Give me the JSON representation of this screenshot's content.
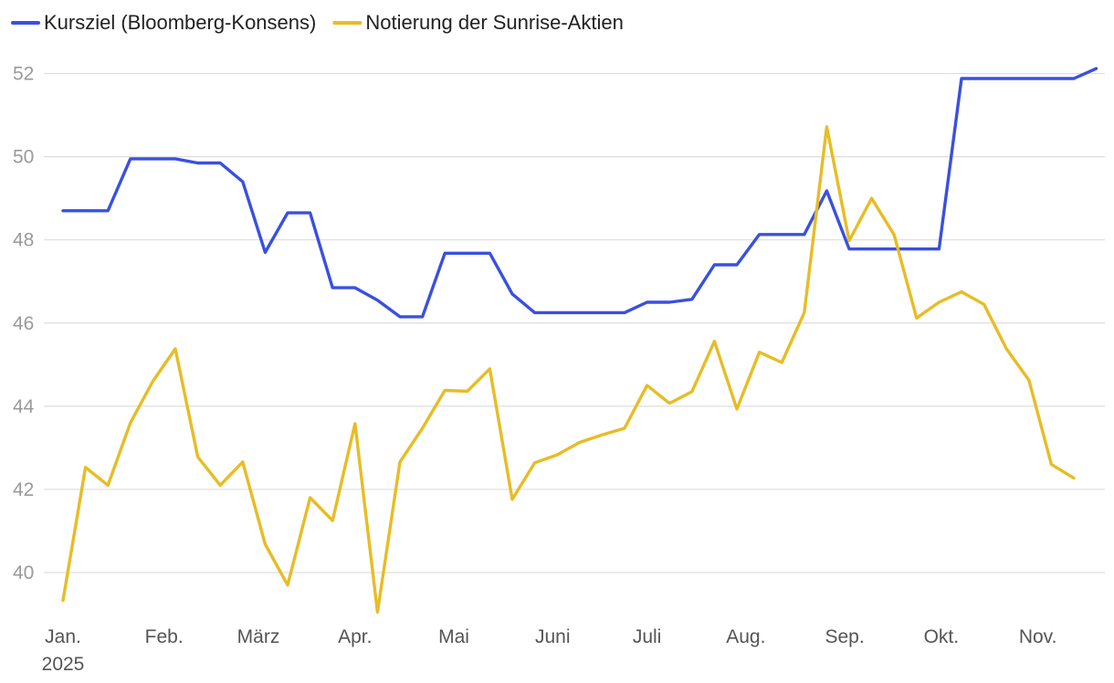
{
  "chart_data": {
    "type": "line",
    "title": "",
    "xlabel": "",
    "ylabel": "",
    "ylim": [
      39.0,
      52.5
    ],
    "y_ticks": [
      40,
      42,
      44,
      46,
      48,
      50,
      52
    ],
    "grid": true,
    "legend_position": "top-left",
    "x_tick_labels": [
      "Jan.",
      "Feb.",
      "März",
      "Apr.",
      "Mai",
      "Juni",
      "Juli",
      "Aug.",
      "Sep.",
      "Okt.",
      "Nov."
    ],
    "x_tick_week_index": [
      0,
      4.5,
      8.7,
      13.0,
      17.4,
      21.8,
      26.0,
      30.4,
      34.8,
      39.1,
      43.4
    ],
    "year_label": "2025",
    "series": [
      {
        "name": "Kursziel (Bloomberg-Konsens)",
        "color": "#3a50e0",
        "values": [
          48.7,
          48.7,
          48.7,
          49.95,
          49.95,
          49.95,
          49.85,
          49.85,
          49.4,
          47.7,
          48.65,
          48.65,
          46.85,
          46.85,
          46.55,
          46.15,
          46.15,
          47.68,
          47.68,
          47.68,
          46.7,
          46.25,
          46.25,
          46.25,
          46.25,
          46.25,
          46.5,
          46.5,
          46.57,
          47.4,
          47.4,
          48.13,
          48.13,
          48.13,
          49.18,
          47.78,
          47.78,
          47.78,
          47.78,
          47.78,
          51.88,
          51.88,
          51.88,
          51.88,
          51.88,
          51.88,
          52.12
        ]
      },
      {
        "name": "Notierung der Sunrise-Aktien",
        "color": "#e8bc25",
        "values": [
          39.33,
          42.53,
          42.1,
          43.6,
          44.6,
          45.38,
          42.78,
          42.1,
          42.66,
          40.68,
          39.7,
          41.8,
          41.25,
          43.58,
          39.05,
          42.66,
          43.47,
          44.38,
          44.36,
          44.9,
          41.76,
          42.64,
          42.83,
          43.13,
          43.31,
          43.47,
          44.5,
          44.07,
          44.35,
          45.56,
          43.93,
          45.3,
          45.05,
          46.25,
          50.72,
          47.98,
          49.0,
          48.12,
          46.12,
          46.5,
          46.75,
          46.45,
          45.38,
          44.63,
          42.6,
          42.27
        ]
      }
    ]
  }
}
